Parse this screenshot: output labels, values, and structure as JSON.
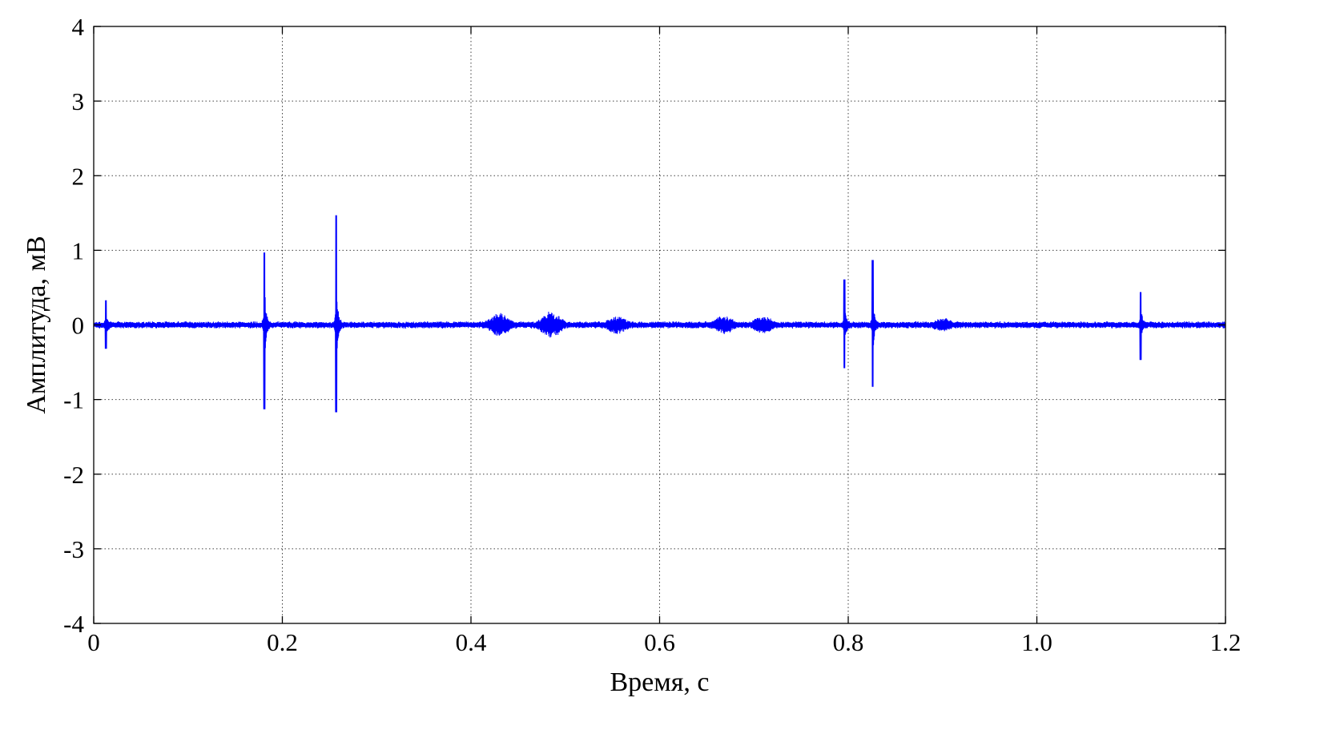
{
  "chart_data": {
    "type": "line",
    "title": "",
    "xlabel": "Время, с",
    "ylabel": "Амплитуда, мВ",
    "xlim": [
      0,
      1.2
    ],
    "ylim": [
      -4,
      4
    ],
    "x_ticks": [
      "0",
      "0.2",
      "0.4",
      "0.6",
      "0.8",
      "1.0",
      "1.2"
    ],
    "x_tick_values": [
      0,
      0.2,
      0.4,
      0.6,
      0.8,
      1.0,
      1.2
    ],
    "y_ticks": [
      "4",
      "3",
      "2",
      "1",
      "0",
      "-1",
      "-2",
      "-3",
      "-4"
    ],
    "y_tick_values": [
      4,
      3,
      2,
      1,
      0,
      -1,
      -2,
      -3,
      -4
    ],
    "grid": true,
    "line_color": "#0000ff",
    "baseline_noise_amplitude": 0.05,
    "series": [
      {
        "values_description": "noisy signal with transient spikes",
        "spikes": [
          {
            "t": 0.013,
            "max": 0.33,
            "min": -0.32
          },
          {
            "t": 0.181,
            "max": 0.97,
            "min": -1.13
          },
          {
            "t": 0.257,
            "max": 1.47,
            "min": -1.17
          },
          {
            "t": 0.796,
            "max": 0.61,
            "min": -0.58
          },
          {
            "t": 0.826,
            "max": 0.87,
            "min": -0.83
          },
          {
            "t": 1.11,
            "max": 0.44,
            "min": -0.47
          }
        ],
        "bursts": [
          {
            "t": 0.43,
            "amp": 0.17
          },
          {
            "t": 0.485,
            "amp": 0.19
          },
          {
            "t": 0.555,
            "amp": 0.13
          },
          {
            "t": 0.668,
            "amp": 0.13
          },
          {
            "t": 0.71,
            "amp": 0.13
          },
          {
            "t": 0.9,
            "amp": 0.1
          }
        ]
      }
    ]
  }
}
